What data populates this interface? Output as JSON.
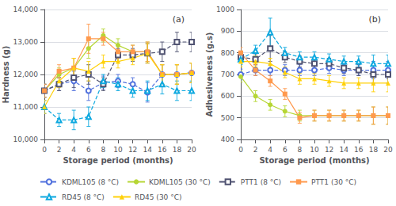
{
  "chart_data": [
    {
      "type": "line",
      "title": "(a)",
      "x_label": "Storage period (months)",
      "y_label": "Hardness (g)",
      "xlim": [
        0,
        20
      ],
      "xticks": [
        0,
        2,
        4,
        6,
        8,
        10,
        12,
        14,
        16,
        18,
        20
      ],
      "ylim": [
        10000,
        14000
      ],
      "yticks": [
        {
          "value": 10000,
          "label": "10,000"
        },
        {
          "value": 11000,
          "label": "11,000"
        },
        {
          "value": 12000,
          "label": "12,000"
        },
        {
          "value": 13000,
          "label": "13,000"
        },
        {
          "value": 14000,
          "label": "14,000"
        }
      ],
      "grid": "y",
      "x": [
        0,
        2,
        4,
        6,
        8,
        10,
        12,
        14,
        16,
        18,
        20
      ],
      "series": [
        {
          "name": "KDML105 (8 °C)",
          "marker": "open circle",
          "line_style": "dashed",
          "values": [
            11500,
            11700,
            11800,
            11500,
            11750,
            11800,
            11700,
            11450,
            12000,
            12000,
            12050
          ],
          "yerr": [
            200,
            200,
            300,
            300,
            200,
            200,
            200,
            300,
            300,
            300,
            300
          ]
        },
        {
          "name": "KDML105 (30 °C)",
          "marker": "circle",
          "line_style": "solid",
          "values": [
            11500,
            12000,
            12200,
            12800,
            13200,
            12900,
            12700,
            12700,
            12000,
            12000,
            12050
          ],
          "yerr": [
            200,
            200,
            300,
            300,
            200,
            200,
            200,
            300,
            300,
            300,
            300
          ]
        },
        {
          "name": "PTT1 (8 °C)",
          "marker": "open square",
          "line_style": "dashed",
          "values": [
            11500,
            11700,
            11900,
            12000,
            11700,
            12600,
            12600,
            12650,
            12700,
            13000,
            13000
          ],
          "yerr": [
            200,
            200,
            300,
            300,
            200,
            200,
            200,
            300,
            300,
            300,
            300
          ]
        },
        {
          "name": "PTT1 (30 °C)",
          "marker": "square",
          "line_style": "solid",
          "values": [
            11500,
            12100,
            12200,
            13100,
            13100,
            12700,
            12700,
            12700,
            12000,
            12000,
            12050
          ],
          "yerr": [
            200,
            200,
            300,
            450,
            200,
            200,
            200,
            300,
            300,
            300,
            300
          ]
        },
        {
          "name": "RD45 (8 °C)",
          "marker": "open triangle",
          "line_style": "dashed",
          "values": [
            11000,
            10600,
            10600,
            10700,
            11800,
            11700,
            11500,
            11500,
            11700,
            11500,
            11500
          ],
          "yerr": [
            200,
            200,
            300,
            300,
            200,
            200,
            200,
            300,
            300,
            300,
            300
          ]
        },
        {
          "name": "RD45 (30 °C)",
          "marker": "triangle",
          "line_style": "solid",
          "values": [
            11000,
            11800,
            12200,
            12100,
            12400,
            12400,
            12500,
            12650,
            12000,
            12000,
            12050
          ],
          "yerr": [
            200,
            200,
            300,
            300,
            200,
            200,
            200,
            300,
            300,
            300,
            300
          ]
        }
      ]
    },
    {
      "type": "line",
      "title": "(b)",
      "x_label": "Storage period (months)",
      "y_label": "Adhesiveness (g.s)",
      "xlim": [
        0,
        20
      ],
      "xticks": [
        0,
        2,
        4,
        6,
        8,
        10,
        12,
        14,
        16,
        18,
        20
      ],
      "ylim": [
        400,
        1000
      ],
      "yticks": [
        400,
        500,
        600,
        700,
        800,
        900,
        1000
      ],
      "grid": "y",
      "x": [
        0,
        2,
        4,
        6,
        8,
        10,
        12,
        14,
        16,
        18,
        20
      ],
      "series": [
        {
          "name": "KDML105 (8 °C)",
          "marker": "open circle",
          "line_style": "dashed",
          "values": [
            700,
            720,
            720,
            720,
            720,
            720,
            730,
            720,
            720,
            720,
            720
          ],
          "yerr": [
            25,
            25,
            25,
            25,
            25,
            25,
            25,
            25,
            25,
            40,
            40
          ]
        },
        {
          "name": "KDML105 (30 °C)",
          "marker": "circle",
          "line_style": "solid",
          "values": [
            690,
            600,
            560,
            530,
            510,
            510,
            510,
            510,
            510,
            510,
            510
          ],
          "yerr": [
            25,
            25,
            25,
            25,
            25,
            25,
            25,
            25,
            25,
            40,
            40
          ]
        },
        {
          "name": "PTT1 (8 °C)",
          "marker": "open square",
          "line_style": "dashed",
          "values": [
            780,
            770,
            820,
            780,
            760,
            750,
            750,
            730,
            720,
            700,
            700
          ],
          "yerr": [
            25,
            25,
            60,
            25,
            25,
            25,
            25,
            25,
            25,
            40,
            40
          ]
        },
        {
          "name": "PTT1 (30 °C)",
          "marker": "square",
          "line_style": "solid",
          "values": [
            800,
            720,
            670,
            610,
            500,
            510,
            510,
            510,
            510,
            510,
            510
          ],
          "yerr": [
            25,
            25,
            25,
            25,
            25,
            25,
            25,
            25,
            25,
            40,
            40
          ]
        },
        {
          "name": "RD45 (8 °C)",
          "marker": "open triangle",
          "line_style": "dashed",
          "values": [
            770,
            810,
            895,
            800,
            780,
            780,
            770,
            760,
            760,
            750,
            750
          ],
          "yerr": [
            25,
            25,
            65,
            25,
            25,
            25,
            25,
            25,
            25,
            40,
            40
          ]
        },
        {
          "name": "RD45 (30 °C)",
          "marker": "triangle",
          "line_style": "solid",
          "values": [
            760,
            760,
            750,
            710,
            680,
            680,
            670,
            660,
            660,
            660,
            660
          ],
          "yerr": [
            25,
            25,
            25,
            25,
            25,
            25,
            25,
            25,
            25,
            40,
            40
          ]
        }
      ]
    }
  ]
}
